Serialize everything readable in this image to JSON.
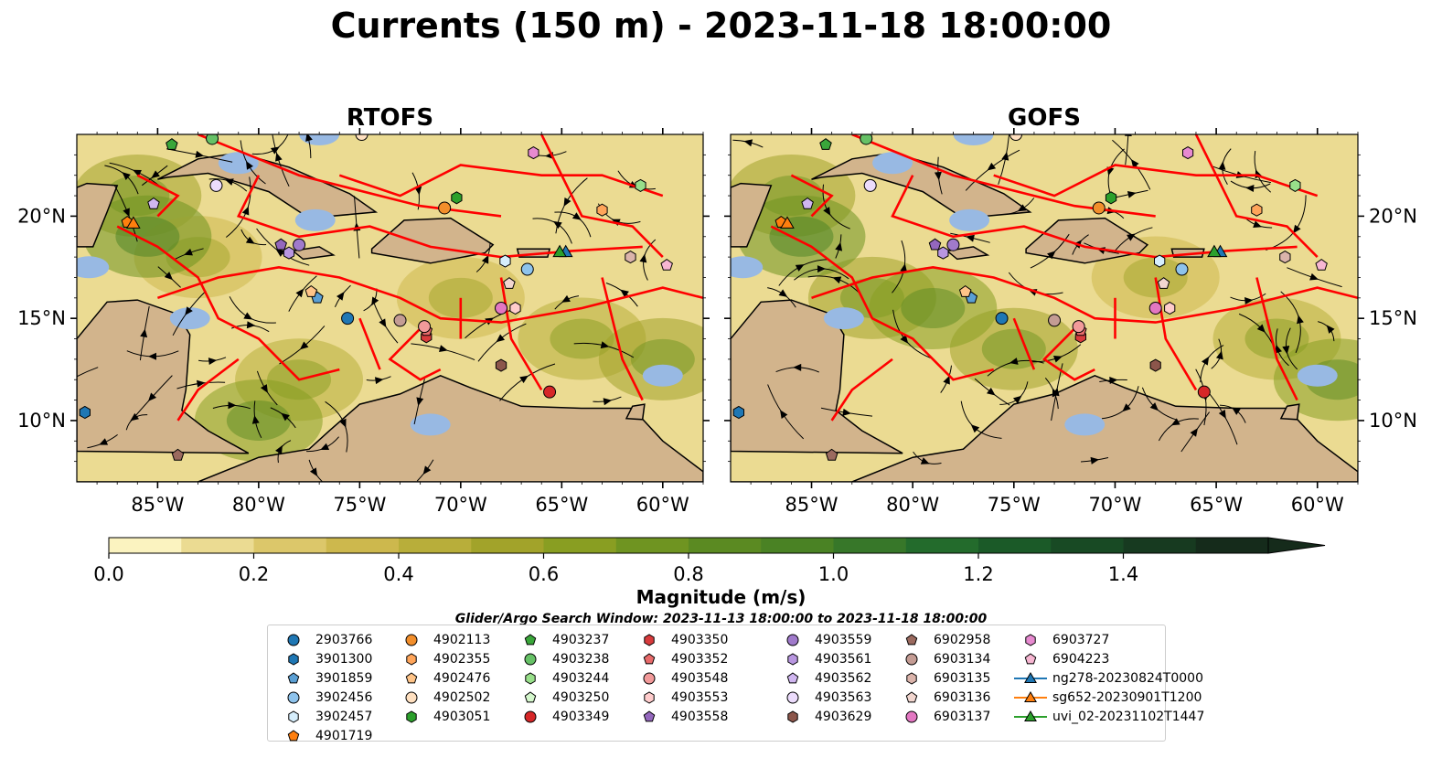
{
  "title": "Currents (150 m) - 2023-11-18 18:00:00",
  "panels": [
    {
      "title": "RTOFS"
    },
    {
      "title": "GOFS"
    }
  ],
  "axes": {
    "x_ticks": [
      "85°W",
      "80°W",
      "75°W",
      "70°W",
      "65°W",
      "60°W"
    ],
    "y_ticks": [
      "20°N",
      "15°N",
      "10°N"
    ]
  },
  "colorbar": {
    "label": "Magnitude (m/s)",
    "ticks": [
      "0.0",
      "0.2",
      "0.4",
      "0.6",
      "0.8",
      "1.0",
      "1.2",
      "1.4"
    ],
    "range": [
      0.0,
      1.6
    ],
    "step": 0.1,
    "extend": "max",
    "colors": [
      "#fbf3c0",
      "#ebdb92",
      "#dcc76a",
      "#cdb84d",
      "#b8ae3a",
      "#a2a32a",
      "#899e22",
      "#6f9421",
      "#5b8a22",
      "#4a8224",
      "#377729",
      "#236b2c",
      "#1b5a28",
      "#184a24",
      "#173a20",
      "#152b1b"
    ]
  },
  "search_window": "Glider/Argo Search Window: 2023-11-13 18:00:00 to 2023-11-18 18:00:00",
  "map_colors": {
    "land": "#d2b48c",
    "shallow_water": "#98b9e3",
    "boundaries": "#ff0000",
    "streamlines": "#000000"
  },
  "legend": {
    "columns": [
      [
        {
          "label": "2903766",
          "marker": "circle",
          "color": "#1f77b4"
        },
        {
          "label": "3901300",
          "marker": "hexagon",
          "color": "#1f77b4"
        },
        {
          "label": "3901859",
          "marker": "pentagon",
          "color": "#5a9fd4"
        },
        {
          "label": "3902456",
          "marker": "circle",
          "color": "#8ec3ec"
        },
        {
          "label": "3902457",
          "marker": "hexagon",
          "color": "#d6eefc"
        },
        {
          "label": "4901719",
          "marker": "pentagon",
          "color": "#ff7f0e"
        }
      ],
      [
        {
          "label": "4902113",
          "marker": "circle",
          "color": "#f28e2b"
        },
        {
          "label": "4902355",
          "marker": "hexagon",
          "color": "#ffa55a"
        },
        {
          "label": "4902476",
          "marker": "pentagon",
          "color": "#ffc488"
        },
        {
          "label": "4902502",
          "marker": "circle",
          "color": "#ffe0c0"
        },
        {
          "label": "4903051",
          "marker": "hexagon",
          "color": "#2ca02c"
        }
      ],
      [
        {
          "label": "4903237",
          "marker": "pentagon",
          "color": "#3aa63a"
        },
        {
          "label": "4903238",
          "marker": "circle",
          "color": "#66c166"
        },
        {
          "label": "4903244",
          "marker": "hexagon",
          "color": "#98df8a"
        },
        {
          "label": "4903250",
          "marker": "pentagon",
          "color": "#d4f7cc"
        },
        {
          "label": "4903349",
          "marker": "circle",
          "color": "#d62728"
        }
      ],
      [
        {
          "label": "4903350",
          "marker": "hexagon",
          "color": "#d83b3c"
        },
        {
          "label": "4903352",
          "marker": "pentagon",
          "color": "#e86a6a"
        },
        {
          "label": "4903548",
          "marker": "circle",
          "color": "#f29a9a"
        },
        {
          "label": "4903553",
          "marker": "hexagon",
          "color": "#ffcccc"
        },
        {
          "label": "4903558",
          "marker": "pentagon",
          "color": "#9467bd"
        }
      ],
      [
        {
          "label": "4903559",
          "marker": "circle",
          "color": "#a07acb"
        },
        {
          "label": "4903561",
          "marker": "hexagon",
          "color": "#b896e0"
        },
        {
          "label": "4903562",
          "marker": "pentagon",
          "color": "#d0b6f0"
        },
        {
          "label": "4903563",
          "marker": "circle",
          "color": "#ecdcfc"
        },
        {
          "label": "4903629",
          "marker": "hexagon",
          "color": "#8c564b"
        }
      ],
      [
        {
          "label": "6902958",
          "marker": "pentagon",
          "color": "#9b6a5f"
        },
        {
          "label": "6903134",
          "marker": "circle",
          "color": "#c49c94"
        },
        {
          "label": "6903135",
          "marker": "hexagon",
          "color": "#dbb4ab"
        },
        {
          "label": "6903136",
          "marker": "pentagon",
          "color": "#f2d6cf"
        },
        {
          "label": "6903137",
          "marker": "circle",
          "color": "#e377c2"
        }
      ],
      [
        {
          "label": "6903727",
          "marker": "hexagon",
          "color": "#e78ad0"
        },
        {
          "label": "6904223",
          "marker": "pentagon",
          "color": "#f7b6d2"
        },
        {
          "label": "ng278-20230824T0000",
          "marker": "triangle-line",
          "color": "#1f77b4"
        },
        {
          "label": "sg652-20230901T1200",
          "marker": "triangle-line",
          "color": "#ff7f0e"
        },
        {
          "label": "uvi_02-20231102T1447",
          "marker": "triangle-line",
          "color": "#2ca02c"
        }
      ]
    ]
  },
  "floats": [
    {
      "label": "2903766",
      "lon": -75.6,
      "lat": 15.0
    },
    {
      "label": "3901300",
      "lon": -88.6,
      "lat": 10.4
    },
    {
      "label": "3901859",
      "lon": -77.1,
      "lat": 16.0
    },
    {
      "label": "3902456",
      "lon": -66.7,
      "lat": 17.4
    },
    {
      "label": "3902457",
      "lon": -67.8,
      "lat": 17.8
    },
    {
      "label": "4901719",
      "lon": -86.5,
      "lat": 19.7
    },
    {
      "label": "4902113",
      "lon": -70.8,
      "lat": 20.4
    },
    {
      "label": "4902355",
      "lon": -63.0,
      "lat": 20.3
    },
    {
      "label": "4902476",
      "lon": -77.4,
      "lat": 16.3
    },
    {
      "label": "4902502",
      "lon": -74.9,
      "lat": 24.0
    },
    {
      "label": "4903051",
      "lon": -70.2,
      "lat": 20.9
    },
    {
      "label": "4903237",
      "lon": -84.3,
      "lat": 23.5
    },
    {
      "label": "4903238",
      "lon": -82.3,
      "lat": 23.8
    },
    {
      "label": "4903244",
      "lon": -61.1,
      "lat": 21.5
    },
    {
      "label": "4903349",
      "lon": -65.6,
      "lat": 11.4
    },
    {
      "label": "4903350",
      "lon": -71.7,
      "lat": 14.1
    },
    {
      "label": "4903352",
      "lon": -71.7,
      "lat": 14.4
    },
    {
      "label": "4903548",
      "lon": -71.8,
      "lat": 14.6
    },
    {
      "label": "4903553",
      "lon": -67.3,
      "lat": 15.5
    },
    {
      "label": "4903558",
      "lon": -78.9,
      "lat": 18.6
    },
    {
      "label": "4903559",
      "lon": -78.0,
      "lat": 18.6
    },
    {
      "label": "4903561",
      "lon": -78.5,
      "lat": 18.2
    },
    {
      "label": "4903562",
      "lon": -85.2,
      "lat": 20.6
    },
    {
      "label": "4903563",
      "lon": -82.1,
      "lat": 21.5
    },
    {
      "label": "4903629",
      "lon": -68.0,
      "lat": 12.7
    },
    {
      "label": "6902958",
      "lon": -84.0,
      "lat": 8.3
    },
    {
      "label": "6903134",
      "lon": -73.0,
      "lat": 14.9
    },
    {
      "label": "6903135",
      "lon": -61.6,
      "lat": 18.0
    },
    {
      "label": "6903136",
      "lon": -67.6,
      "lat": 16.7
    },
    {
      "label": "6903137",
      "lon": -68.0,
      "lat": 15.5
    },
    {
      "label": "6903727",
      "lon": -66.4,
      "lat": 23.1
    },
    {
      "label": "6904223",
      "lon": -59.8,
      "lat": 17.6
    }
  ],
  "gliders": [
    {
      "label": "ng278-20230824T0000",
      "lon": -64.8,
      "lat": 18.2
    },
    {
      "label": "sg652-20230901T1200",
      "lon": -86.2,
      "lat": 19.6
    },
    {
      "label": "uvi_02-20231102T1447",
      "lon": -65.1,
      "lat": 18.2
    }
  ]
}
